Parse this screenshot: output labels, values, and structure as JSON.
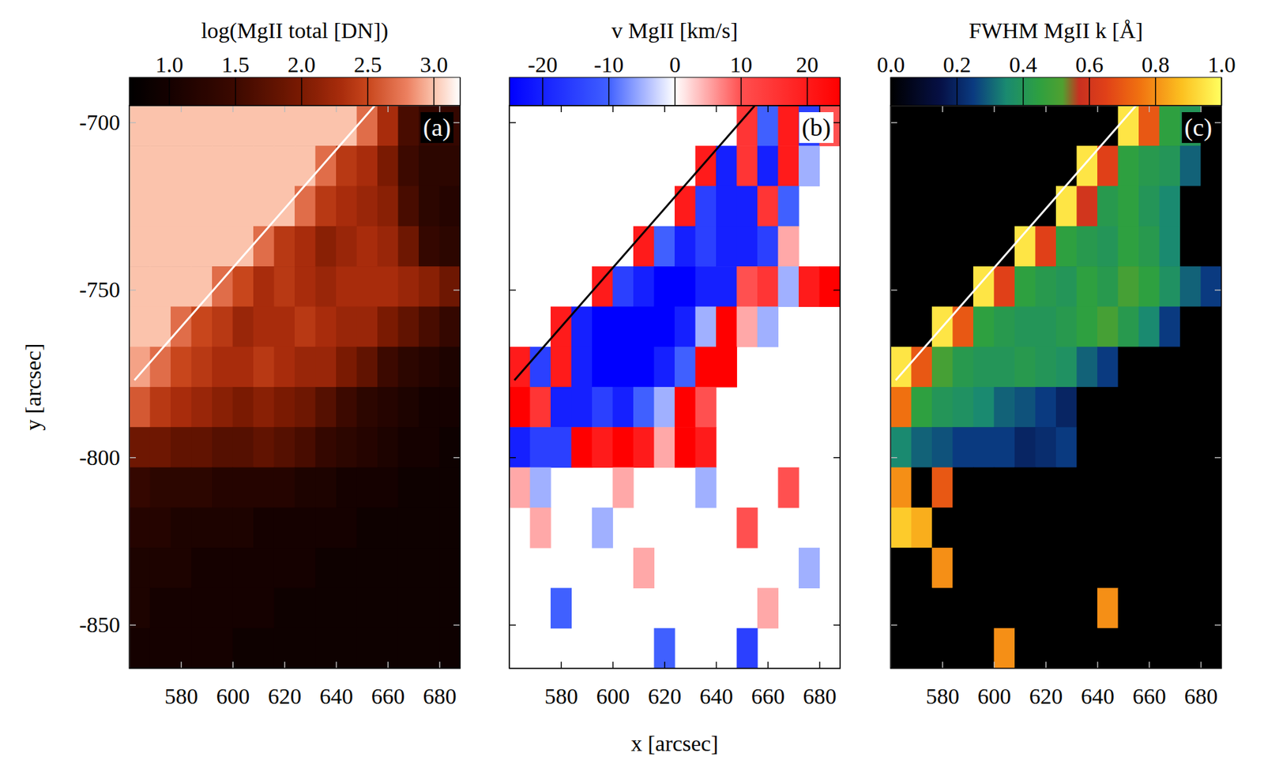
{
  "chart_data": [
    {
      "type": "heatmap",
      "panel_label": "(a)",
      "ylabel": "y [arcsec]",
      "tick_labels": true,
      "xlim": [
        560,
        688
      ],
      "ylim": [
        -863,
        -695
      ],
      "xticks": [
        580,
        600,
        620,
        640,
        660,
        680
      ],
      "yticks": [
        -700,
        -750,
        -800,
        -850
      ],
      "colorbar": {
        "label": "log(MgII total [DN])",
        "range": [
          0.7,
          3.2
        ],
        "ticks": [
          {
            "value": 1,
            "label": "1.0"
          },
          1.5,
          {
            "value": 2,
            "label": "2.0"
          },
          2.5,
          {
            "value": 3,
            "label": "3.0"
          }
        ]
      },
      "limb": {
        "x": [
          562,
          655
        ],
        "y": [
          -777,
          -695
        ]
      },
      "x": [
        564,
        572,
        580,
        588,
        596,
        604,
        612,
        620,
        628,
        636,
        644,
        652,
        660,
        668,
        676,
        684
      ],
      "y": [
        -701,
        -713,
        -725,
        -737,
        -749,
        -761,
        -773,
        -785,
        -797,
        -809,
        -821,
        -833,
        -845,
        -857
      ],
      "z": [
        [
          3.0,
          3.0,
          3.0,
          3.0,
          3.0,
          3.0,
          3.0,
          3.0,
          3.0,
          3.0,
          3.0,
          2.7,
          2.3,
          1.6,
          1.4,
          1.4
        ],
        [
          3.0,
          3.0,
          3.0,
          3.0,
          3.0,
          3.0,
          3.0,
          3.0,
          3.0,
          2.7,
          2.4,
          2.3,
          2.0,
          1.5,
          1.3,
          1.3
        ],
        [
          3.0,
          3.0,
          3.0,
          3.0,
          3.0,
          3.0,
          3.0,
          3.0,
          2.7,
          2.4,
          2.3,
          2.2,
          2.1,
          1.6,
          1.3,
          1.2
        ],
        [
          3.0,
          3.0,
          3.0,
          3.0,
          3.0,
          3.0,
          2.7,
          2.4,
          2.3,
          2.1,
          2.2,
          2.3,
          2.2,
          1.9,
          1.4,
          1.3
        ],
        [
          3.0,
          3.0,
          3.0,
          3.0,
          2.7,
          2.5,
          2.3,
          2.4,
          2.3,
          2.2,
          2.3,
          2.3,
          2.3,
          2.2,
          2.1,
          1.9
        ],
        [
          3.0,
          3.0,
          2.7,
          2.5,
          2.4,
          2.2,
          2.3,
          2.3,
          2.4,
          2.3,
          2.2,
          2.2,
          2.0,
          1.8,
          1.6,
          1.4
        ],
        [
          2.9,
          2.7,
          2.5,
          2.4,
          2.3,
          2.3,
          2.4,
          2.3,
          2.2,
          2.2,
          2.0,
          1.8,
          1.5,
          1.3,
          1.2,
          1.1
        ],
        [
          2.6,
          2.4,
          2.3,
          2.2,
          2.1,
          2.0,
          2.1,
          2.0,
          1.9,
          1.7,
          1.5,
          1.3,
          1.2,
          1.1,
          1.0,
          1.0
        ],
        [
          1.9,
          1.9,
          1.8,
          1.8,
          1.7,
          1.7,
          1.8,
          1.7,
          1.6,
          1.4,
          1.3,
          1.2,
          1.1,
          1.0,
          1.0,
          0.9
        ],
        [
          1.4,
          1.3,
          1.3,
          1.3,
          1.2,
          1.2,
          1.2,
          1.2,
          1.1,
          1.1,
          1.0,
          1.0,
          1.0,
          0.9,
          0.9,
          0.9
        ],
        [
          1.2,
          1.2,
          1.1,
          1.1,
          1.1,
          1.1,
          1.0,
          1.0,
          1.0,
          1.0,
          1.0,
          0.9,
          0.9,
          0.9,
          0.9,
          0.9
        ],
        [
          1.1,
          1.1,
          1.1,
          1.0,
          1.0,
          1.0,
          1.0,
          1.0,
          1.0,
          0.9,
          0.9,
          0.9,
          0.9,
          0.9,
          0.9,
          0.9
        ],
        [
          1.1,
          1.0,
          1.0,
          1.0,
          1.0,
          1.0,
          1.0,
          0.9,
          0.9,
          0.9,
          0.9,
          0.9,
          0.9,
          0.9,
          0.9,
          0.9
        ],
        [
          1.0,
          1.0,
          1.0,
          1.0,
          1.0,
          0.9,
          0.9,
          0.9,
          0.9,
          0.9,
          0.9,
          0.9,
          0.9,
          0.9,
          0.9,
          0.9
        ]
      ]
    },
    {
      "type": "heatmap",
      "panel_label": "(b)",
      "xlabel": "x [arcsec]",
      "tick_labels": "x",
      "xlim": [
        560,
        688
      ],
      "ylim": [
        -863,
        -695
      ],
      "xticks": [
        580,
        600,
        620,
        640,
        660,
        680
      ],
      "yticks": [
        -700,
        -750,
        -800,
        -850
      ],
      "colorbar": {
        "label": "v MgII [km/s]",
        "range": [
          -25,
          25
        ],
        "ticks": [
          -20,
          -10,
          0,
          10,
          20
        ]
      },
      "limb": {
        "x": [
          562,
          655
        ],
        "y": [
          -777,
          -695
        ]
      },
      "x": [
        564,
        572,
        580,
        588,
        596,
        604,
        612,
        620,
        628,
        636,
        644,
        652,
        660,
        668,
        676,
        684
      ],
      "y": [
        -701,
        -713,
        -725,
        -737,
        -749,
        -761,
        -773,
        -785,
        -797,
        -809,
        -821,
        -833,
        -845,
        -857
      ],
      "z": [
        [
          null,
          null,
          null,
          null,
          null,
          null,
          null,
          null,
          null,
          null,
          null,
          15,
          -10,
          20,
          -15,
          10
        ],
        [
          null,
          null,
          null,
          null,
          null,
          null,
          null,
          null,
          null,
          20,
          -20,
          15,
          -20,
          20,
          -5,
          null
        ],
        [
          null,
          null,
          null,
          null,
          null,
          null,
          null,
          null,
          20,
          -15,
          -20,
          -20,
          15,
          -10,
          null,
          null
        ],
        [
          null,
          null,
          null,
          null,
          null,
          null,
          20,
          -10,
          -20,
          -15,
          -20,
          -20,
          -15,
          5,
          null,
          null
        ],
        [
          null,
          null,
          null,
          null,
          20,
          -15,
          -20,
          -25,
          -25,
          -20,
          -20,
          10,
          15,
          -5,
          20,
          25
        ],
        [
          null,
          null,
          20,
          -20,
          -25,
          -25,
          -25,
          -25,
          -20,
          -5,
          25,
          5,
          -5,
          null,
          null,
          null
        ],
        [
          20,
          -15,
          20,
          -20,
          -25,
          -25,
          -25,
          -20,
          -10,
          25,
          25,
          null,
          null,
          null,
          null,
          null
        ],
        [
          25,
          15,
          -20,
          -20,
          -15,
          -20,
          -10,
          -5,
          25,
          10,
          null,
          null,
          null,
          null,
          null,
          null
        ],
        [
          -20,
          -15,
          -15,
          25,
          20,
          25,
          20,
          5,
          25,
          20,
          null,
          null,
          null,
          null,
          null,
          null
        ],
        [
          5,
          -5,
          null,
          null,
          null,
          5,
          null,
          null,
          null,
          -5,
          null,
          null,
          null,
          10,
          null,
          null
        ],
        [
          null,
          5,
          null,
          null,
          -5,
          null,
          null,
          null,
          null,
          null,
          null,
          10,
          null,
          null,
          null,
          null
        ],
        [
          null,
          null,
          null,
          null,
          null,
          null,
          5,
          null,
          null,
          null,
          null,
          null,
          null,
          null,
          -5,
          null
        ],
        [
          null,
          null,
          -10,
          null,
          null,
          null,
          null,
          null,
          null,
          null,
          null,
          null,
          5,
          null,
          null,
          null
        ],
        [
          null,
          null,
          null,
          null,
          null,
          null,
          null,
          -10,
          null,
          null,
          null,
          -15,
          null,
          null,
          null,
          null
        ]
      ]
    },
    {
      "type": "heatmap",
      "panel_label": "(c)",
      "tick_labels": "x",
      "xlim": [
        560,
        688
      ],
      "ylim": [
        -863,
        -695
      ],
      "xticks": [
        580,
        600,
        620,
        640,
        660,
        680
      ],
      "yticks": [
        -700,
        -750,
        -800,
        -850
      ],
      "colorbar": {
        "label": "FWHM MgII k [Å]",
        "range": [
          0,
          1
        ],
        "ticks": [
          {
            "value": 0,
            "label": "0.0"
          },
          0.2,
          0.4,
          0.6,
          0.8,
          {
            "value": 1,
            "label": "1.0"
          }
        ]
      },
      "limb": {
        "x": [
          562,
          655
        ],
        "y": [
          -777,
          -695
        ]
      },
      "x": [
        564,
        572,
        580,
        588,
        596,
        604,
        612,
        620,
        628,
        636,
        644,
        652,
        660,
        668,
        676,
        684
      ],
      "y": [
        -701,
        -713,
        -725,
        -737,
        -749,
        -761,
        -773,
        -785,
        -797,
        -809,
        -821,
        -833,
        -845,
        -857
      ],
      "z": [
        [
          null,
          null,
          null,
          null,
          null,
          null,
          null,
          null,
          null,
          null,
          null,
          0.95,
          0.7,
          0.45,
          0.4,
          0
        ],
        [
          null,
          null,
          null,
          null,
          null,
          null,
          null,
          null,
          null,
          0.95,
          0.65,
          0.45,
          0.42,
          0.4,
          0.3,
          0
        ],
        [
          null,
          null,
          null,
          null,
          null,
          null,
          null,
          null,
          0.95,
          0.6,
          0.42,
          0.45,
          0.4,
          0.35,
          0,
          0
        ],
        [
          null,
          null,
          null,
          null,
          null,
          null,
          0.95,
          0.65,
          0.45,
          0.42,
          0.4,
          0.45,
          0.42,
          0.35,
          0,
          0
        ],
        [
          null,
          null,
          null,
          null,
          0.95,
          0.65,
          0.45,
          0.42,
          0.4,
          0.45,
          0.42,
          0.5,
          0.45,
          0.38,
          0.3,
          0.25
        ],
        [
          null,
          null,
          0.95,
          0.7,
          0.45,
          0.42,
          0.4,
          0.4,
          0.42,
          0.45,
          0.5,
          0.42,
          0.35,
          0.25,
          0,
          0
        ],
        [
          0.95,
          0.7,
          0.5,
          0.42,
          0.4,
          0.4,
          0.42,
          0.4,
          0.38,
          0.3,
          0.25,
          0,
          0,
          0,
          0,
          0
        ],
        [
          0.75,
          0.45,
          0.4,
          0.38,
          0.35,
          0.3,
          0.28,
          0.25,
          0.2,
          0,
          0,
          0,
          0,
          0,
          0,
          0
        ],
        [
          0.35,
          0.3,
          0.28,
          0.25,
          0.25,
          0.25,
          0.2,
          0.22,
          0.25,
          0,
          0,
          0,
          0,
          0,
          0,
          0
        ],
        [
          0.8,
          0,
          0.7,
          0,
          0,
          0,
          0,
          0,
          0,
          0,
          0,
          0,
          0,
          0,
          0,
          0
        ],
        [
          0.9,
          0.85,
          0,
          0,
          0,
          0,
          0,
          0,
          0,
          0,
          0,
          0,
          0,
          0,
          0,
          0
        ],
        [
          0,
          0,
          0.8,
          0,
          0,
          0,
          0,
          0,
          0,
          0,
          0,
          0,
          0,
          0,
          0,
          0
        ],
        [
          0,
          0,
          0,
          0,
          0,
          0,
          0,
          0,
          0,
          0,
          0.8,
          0,
          0,
          0,
          0,
          0
        ],
        [
          0,
          0,
          0,
          0,
          0,
          0.8,
          0,
          0,
          0,
          0,
          0,
          0,
          0,
          0,
          0,
          0
        ]
      ]
    }
  ]
}
